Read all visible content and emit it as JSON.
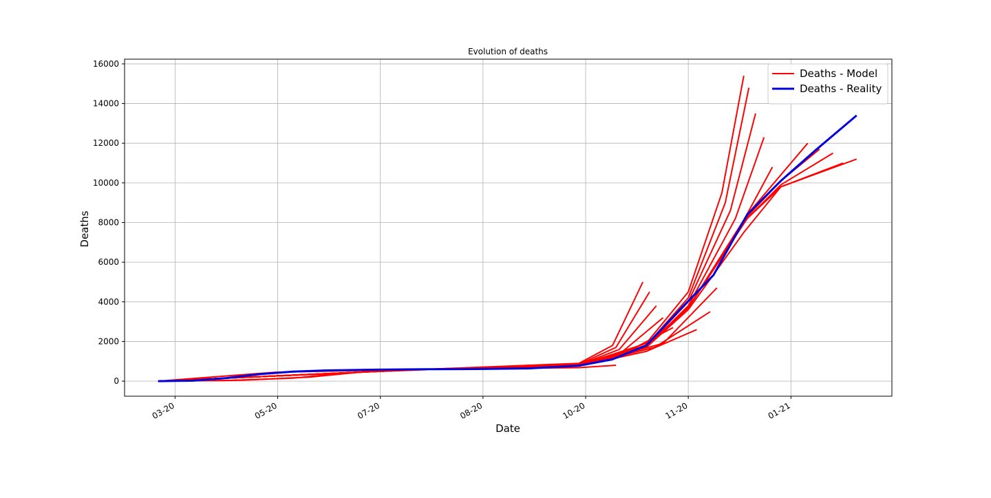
{
  "chart_data": {
    "type": "line",
    "title": "Evolution of deaths",
    "x_label": "Date",
    "y_label": "Deaths",
    "xlim": [
      -30,
      426
    ],
    "ylim": [
      -760,
      16240
    ],
    "xticks": [
      {
        "value": 0,
        "label": "03-20"
      },
      {
        "value": 61,
        "label": "05-20"
      },
      {
        "value": 122,
        "label": "07-20"
      },
      {
        "value": 183,
        "label": "08-20"
      },
      {
        "value": 244,
        "label": "10-20"
      },
      {
        "value": 305,
        "label": "11-20"
      },
      {
        "value": 366,
        "label": "01-21"
      }
    ],
    "yticks": [
      0,
      2000,
      4000,
      6000,
      8000,
      10000,
      12000,
      14000,
      16000
    ],
    "grid": true,
    "legend": "upper right",
    "series": [
      {
        "name": "Deaths - Model",
        "color": "#ff0000",
        "width": 2,
        "lines": [
          {
            "x": [
              -10,
              40,
              80,
              110,
              150
            ],
            "values": [
              0,
              50,
              200,
              450,
              580
            ]
          },
          {
            "x": [
              -10,
              30,
              70,
              100,
              130
            ],
            "values": [
              0,
              30,
              150,
              400,
              560
            ]
          },
          {
            "x": [
              -10,
              60,
              150,
              240,
              262
            ],
            "values": [
              0,
              450,
              600,
              680,
              800
            ]
          },
          {
            "x": [
              -10,
              150,
              240,
              260,
              278
            ],
            "values": [
              0,
              600,
              900,
              1800,
              5000
            ]
          },
          {
            "x": [
              -10,
              150,
              240,
              262,
              282
            ],
            "values": [
              0,
              600,
              850,
              1700,
              4500
            ]
          },
          {
            "x": [
              -10,
              150,
              240,
              264,
              286
            ],
            "values": [
              0,
              600,
              820,
              1600,
              3800
            ]
          },
          {
            "x": [
              -10,
              150,
              240,
              266,
              290
            ],
            "values": [
              0,
              600,
              800,
              1500,
              3200
            ]
          },
          {
            "x": [
              -10,
              150,
              240,
              268,
              296
            ],
            "values": [
              0,
              600,
              780,
              1450,
              2700
            ]
          },
          {
            "x": [
              -10,
              150,
              240,
              280,
              310
            ],
            "values": [
              0,
              600,
              760,
              1500,
              2600
            ]
          },
          {
            "x": [
              -10,
              150,
              240,
              285,
              318
            ],
            "values": [
              0,
              600,
              770,
              1700,
              3500
            ]
          },
          {
            "x": [
              -10,
              150,
              240,
              290,
              322
            ],
            "values": [
              0,
              600,
              780,
              1900,
              4700
            ]
          },
          {
            "x": [
              -10,
              150,
              240,
              280,
              305,
              325,
              338
            ],
            "values": [
              0,
              600,
              800,
              1900,
              4500,
              9500,
              15400
            ]
          },
          {
            "x": [
              -10,
              150,
              240,
              280,
              305,
              327,
              341
            ],
            "values": [
              0,
              600,
              800,
              1800,
              4200,
              9000,
              14800
            ]
          },
          {
            "x": [
              -10,
              150,
              240,
              280,
              305,
              330,
              345
            ],
            "values": [
              0,
              600,
              800,
              1750,
              4000,
              8600,
              13500
            ]
          },
          {
            "x": [
              -10,
              150,
              240,
              280,
              305,
              333,
              350
            ],
            "values": [
              0,
              600,
              800,
              1700,
              3800,
              8200,
              12300
            ]
          },
          {
            "x": [
              -10,
              150,
              240,
              280,
              305,
              336,
              355
            ],
            "values": [
              0,
              600,
              800,
              1700,
              3700,
              7800,
              10800
            ]
          },
          {
            "x": [
              -10,
              150,
              240,
              280,
              305,
              338,
              360
            ],
            "values": [
              0,
              600,
              800,
              1700,
              3600,
              7500,
              9800
            ]
          },
          {
            "x": [
              -10,
              150,
              240,
              280,
              305,
              340,
              360,
              376
            ],
            "values": [
              0,
              600,
              780,
              1800,
              3700,
              8400,
              10400,
              12000
            ]
          },
          {
            "x": [
              -10,
              150,
              240,
              280,
              305,
              340,
              360,
              383
            ],
            "values": [
              0,
              600,
              780,
              1800,
              3700,
              8300,
              10100,
              11700
            ]
          },
          {
            "x": [
              -10,
              150,
              240,
              280,
              305,
              340,
              360,
              391
            ],
            "values": [
              0,
              600,
              780,
              1800,
              3700,
              8200,
              9900,
              11500
            ]
          },
          {
            "x": [
              -10,
              150,
              240,
              280,
              305,
              340,
              360,
              397
            ],
            "values": [
              0,
              600,
              780,
              1800,
              3700,
              8200,
              9800,
              11000
            ]
          },
          {
            "x": [
              -10,
              150,
              240,
              280,
              305,
              340,
              360,
              405
            ],
            "values": [
              0,
              600,
              780,
              1800,
              3700,
              8200,
              9800,
              11200
            ]
          }
        ]
      },
      {
        "name": "Deaths - Reality",
        "color": "#0000dd",
        "width": 3,
        "x": [
          -10,
          10,
          30,
          50,
          70,
          90,
          120,
          150,
          180,
          210,
          240,
          260,
          280,
          300,
          320,
          340,
          360,
          380,
          405
        ],
        "values": [
          0,
          20,
          150,
          350,
          480,
          540,
          580,
          600,
          610,
          640,
          780,
          1100,
          1800,
          3600,
          5350,
          8400,
          10100,
          11600,
          13400
        ]
      }
    ]
  }
}
